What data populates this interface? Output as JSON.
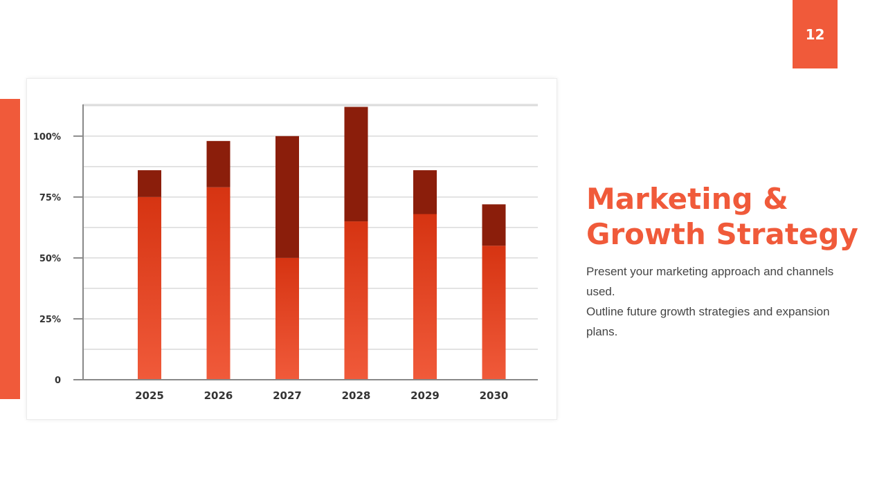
{
  "slide": {
    "page_number": "12",
    "title_line1": "Marketing &",
    "title_line2": "Growth Strategy",
    "description": [
      "Present your marketing approach and channels used.",
      "Outline future growth strategies and expansion plans."
    ]
  },
  "colors": {
    "accent": "#f05a3a",
    "bar_lower_top": "#d63412",
    "bar_lower_bottom": "#f05a3a",
    "bar_upper": "#8b1e0b",
    "grid": "#d9d9d9",
    "axis": "#888888"
  },
  "chart_data": {
    "type": "bar",
    "stacked": true,
    "categories": [
      "2025",
      "2026",
      "2027",
      "2028",
      "2029",
      "2030"
    ],
    "series": [
      {
        "values": [
          75,
          79,
          50,
          65,
          68,
          55
        ]
      },
      {
        "values": [
          11,
          19,
          50,
          47,
          18,
          17
        ]
      }
    ],
    "yticks": [
      0,
      25,
      50,
      75,
      100
    ],
    "ytick_labels": [
      "0",
      "25%",
      "50%",
      "75%",
      "100%"
    ],
    "ylim": [
      0,
      113
    ],
    "grid": true,
    "legend": "none"
  }
}
